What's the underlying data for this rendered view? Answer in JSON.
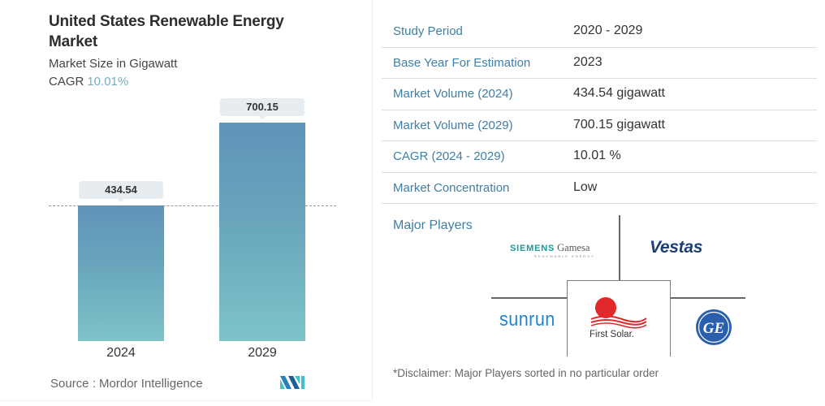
{
  "header": {
    "title": "United States Renewable Energy Market",
    "subtitle": "Market Size in Gigawatt",
    "cagr_label": "CAGR",
    "cagr_value": "10.01%"
  },
  "chart_data": {
    "type": "bar",
    "title": "United States Renewable Energy Market",
    "subtitle": "Market Size in Gigawatt",
    "categories": [
      "2024",
      "2029"
    ],
    "values": [
      434.54,
      700.15
    ],
    "value_labels": [
      "434.54",
      "700.15"
    ],
    "xlabel": "",
    "ylabel": "Market Size in Gigawatt",
    "ylim": [
      0,
      780
    ],
    "grid": false,
    "reference_line": {
      "value": 434.54,
      "style": "dashed"
    },
    "annotations": [
      "CAGR 10.01%"
    ],
    "colors": {
      "bar_top": "#5f93b8",
      "bar_bottom": "#7ec3c8"
    }
  },
  "footer": {
    "source": "Source :  Mordor Intelligence",
    "logo": "mordor-intelligence-logo"
  },
  "table": {
    "rows": [
      {
        "key": "Study Period",
        "value": "2020 - 2029"
      },
      {
        "key": "Base Year For Estimation",
        "value": "2023"
      },
      {
        "key": "Market Volume (2024)",
        "value": "434.54 gigawatt"
      },
      {
        "key": "Market Volume (2029)",
        "value": "700.15 gigawatt"
      },
      {
        "key": "CAGR (2024 - 2029)",
        "value": "10.01 %"
      },
      {
        "key": "Market Concentration",
        "value": "Low"
      }
    ]
  },
  "players": {
    "title": "Major Players",
    "siemens": {
      "part1": "SIEMENS",
      "part2": "Gamesa",
      "tagline": "RENEWABLE ENERGY"
    },
    "vestas": "Vestas",
    "sunrun": "sunrun",
    "first_solar": "First Solar.",
    "ge": "GE",
    "disclaimer": "*Disclaimer: Major Players sorted in no particular order"
  },
  "colors": {
    "accent_blue": "#3f7ea6",
    "cagr_teal": "#6fb0c5",
    "siemens_teal": "#169c9c",
    "vestas_navy": "#1d3f74",
    "sunrun_blue": "#1f86d1",
    "first_solar_red": "#e2282a",
    "ge_blue": "#2b5fae"
  }
}
